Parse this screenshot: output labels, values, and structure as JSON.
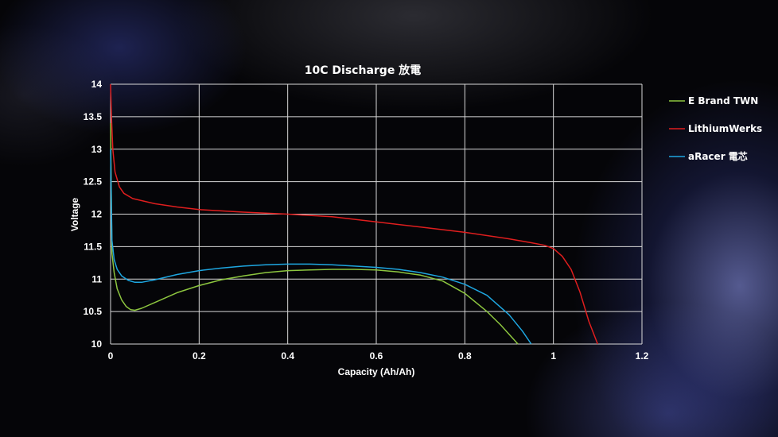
{
  "chart_data": {
    "type": "line",
    "title": "10C Discharge 放電",
    "xlabel": "Capacity (Ah/Ah)",
    "ylabel": "Voltage",
    "xlim": [
      0,
      1.2
    ],
    "ylim": [
      10,
      14
    ],
    "xticks": [
      "0",
      "0.2",
      "0.4",
      "0.6",
      "0.8",
      "1",
      "1.2"
    ],
    "yticks": [
      "10",
      "10.5",
      "11",
      "11.5",
      "12",
      "12.5",
      "13",
      "13.5",
      "14"
    ],
    "grid": true,
    "legend_position": "right",
    "series": [
      {
        "name": "E Brand TWN",
        "color": "#8dc63f",
        "x": [
          0,
          0.003,
          0.008,
          0.015,
          0.025,
          0.035,
          0.045,
          0.055,
          0.07,
          0.1,
          0.15,
          0.2,
          0.25,
          0.3,
          0.35,
          0.4,
          0.45,
          0.5,
          0.55,
          0.6,
          0.65,
          0.7,
          0.75,
          0.8,
          0.85,
          0.88,
          0.9,
          0.92
        ],
        "y": [
          13.4,
          11.4,
          11.1,
          10.85,
          10.68,
          10.58,
          10.53,
          10.52,
          10.55,
          10.64,
          10.79,
          10.9,
          10.99,
          11.05,
          11.1,
          11.13,
          11.14,
          11.15,
          11.15,
          11.14,
          11.11,
          11.06,
          10.97,
          10.78,
          10.5,
          10.3,
          10.15,
          10.0
        ]
      },
      {
        "name": "LithiumWerks",
        "color": "#e01e1e",
        "x": [
          0,
          0.002,
          0.005,
          0.01,
          0.02,
          0.03,
          0.05,
          0.1,
          0.15,
          0.2,
          0.3,
          0.4,
          0.5,
          0.6,
          0.7,
          0.8,
          0.9,
          0.95,
          0.98,
          1.0,
          1.02,
          1.04,
          1.06,
          1.08,
          1.1
        ],
        "y": [
          14.0,
          13.5,
          13.0,
          12.65,
          12.42,
          12.32,
          12.24,
          12.16,
          12.11,
          12.07,
          12.03,
          12.0,
          11.96,
          11.88,
          11.8,
          11.72,
          11.62,
          11.56,
          11.52,
          11.47,
          11.35,
          11.15,
          10.8,
          10.35,
          10.0
        ]
      },
      {
        "name": "aRacer 電芯",
        "color": "#1ea6e0",
        "x": [
          0,
          0.003,
          0.008,
          0.015,
          0.025,
          0.04,
          0.055,
          0.07,
          0.1,
          0.15,
          0.2,
          0.25,
          0.3,
          0.35,
          0.4,
          0.45,
          0.5,
          0.55,
          0.6,
          0.65,
          0.7,
          0.75,
          0.8,
          0.85,
          0.9,
          0.93,
          0.95
        ],
        "y": [
          13.0,
          11.6,
          11.3,
          11.15,
          11.05,
          10.98,
          10.95,
          10.95,
          10.99,
          11.07,
          11.13,
          11.17,
          11.2,
          11.22,
          11.23,
          11.23,
          11.22,
          11.2,
          11.18,
          11.15,
          11.1,
          11.03,
          10.92,
          10.75,
          10.45,
          10.2,
          10.0
        ]
      }
    ]
  }
}
